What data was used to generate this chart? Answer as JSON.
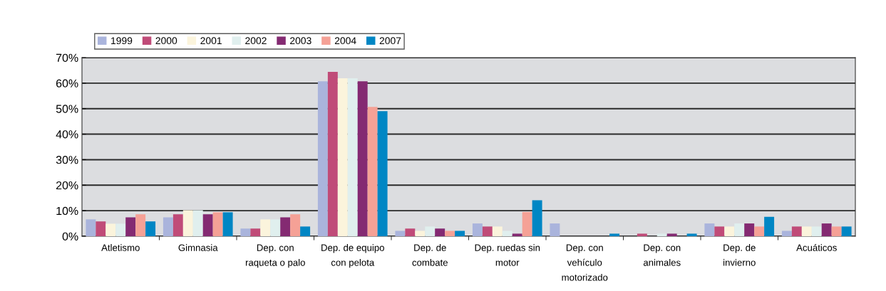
{
  "chart_data": {
    "type": "bar",
    "categories": [
      "Atletismo",
      "Gimnasia",
      "Dep. con\nraqueta o palo",
      "Dep. de equipo\ncon pelota",
      "Dep. de\ncombate",
      "Dep. ruedas sin\nmotor",
      "Dep. con\nvehículo\nmotorizado",
      "Dep. con\nanimales",
      "Dep. de\ninvierno",
      "Acuáticos"
    ],
    "series": [
      {
        "name": "1999",
        "color": "#aab4dc",
        "values": [
          6.6,
          7.4,
          3.0,
          60.7,
          2.1,
          5.0,
          5.0,
          0,
          5.0,
          2.1
        ]
      },
      {
        "name": "2000",
        "color": "#c04b78",
        "values": [
          5.8,
          8.6,
          3.0,
          64.4,
          3.0,
          3.8,
          0,
          1.0,
          3.8,
          3.8
        ]
      },
      {
        "name": "2001",
        "color": "#fbf4dc",
        "values": [
          4.9,
          10.2,
          6.6,
          61.9,
          2.1,
          3.8,
          0,
          0,
          3.8,
          3.8
        ]
      },
      {
        "name": "2002",
        "color": "#e0efee",
        "values": [
          4.9,
          10.2,
          6.6,
          61.9,
          3.8,
          2.1,
          0,
          1.0,
          5.0,
          3.8
        ]
      },
      {
        "name": "2003",
        "color": "#842a72",
        "values": [
          7.4,
          8.6,
          7.4,
          60.7,
          3.0,
          1.0,
          0,
          1.0,
          5.0,
          5.0
        ]
      },
      {
        "name": "2004",
        "color": "#f5a196",
        "values": [
          8.6,
          9.4,
          8.6,
          50.7,
          2.1,
          9.5,
          0,
          0,
          3.8,
          3.8
        ]
      },
      {
        "name": "2007",
        "color": "#0086c4",
        "values": [
          5.8,
          9.4,
          3.8,
          49.0,
          2.1,
          14.1,
          1.0,
          1.0,
          7.6,
          3.8
        ]
      }
    ],
    "ylim": [
      0,
      70
    ],
    "yticks": [
      {
        "value": 0,
        "label": "0%"
      },
      {
        "value": 10,
        "label": "10%"
      },
      {
        "value": 20,
        "label": "20%"
      },
      {
        "value": 30,
        "label": "30%"
      },
      {
        "value": 40,
        "label": "40%"
      },
      {
        "value": 50,
        "label": "50%"
      },
      {
        "value": 60,
        "label": "60%"
      },
      {
        "value": 70,
        "label": "70%"
      }
    ],
    "grid": "y",
    "legend": "top left"
  }
}
